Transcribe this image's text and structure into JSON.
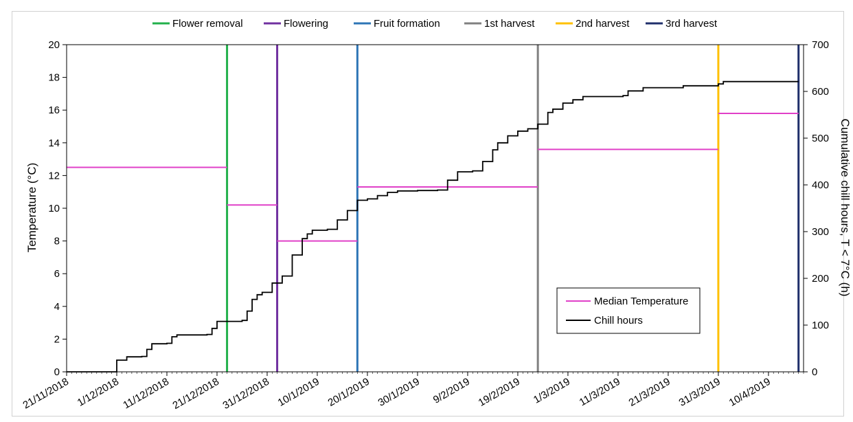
{
  "chart_data": {
    "type": "line",
    "title": "",
    "ylabel": "Temperature (°C)",
    "y2label": "Cumulative chill hours, T < 7°C (h)",
    "ylim": [
      0,
      20
    ],
    "y2lim": [
      0,
      700
    ],
    "yticks": [
      0,
      2,
      4,
      6,
      8,
      10,
      12,
      14,
      16,
      18,
      20
    ],
    "y2ticks": [
      0,
      100,
      200,
      300,
      400,
      500,
      600,
      700
    ],
    "xlim": [
      "2018-11-21",
      "2019-04-17"
    ],
    "xticks": [
      {
        "date": "2018-11-21",
        "label": "21/11/2018"
      },
      {
        "date": "2018-12-01",
        "label": "1/12/2018"
      },
      {
        "date": "2018-12-11",
        "label": "11/12/2018"
      },
      {
        "date": "2018-12-21",
        "label": "21/12/2018"
      },
      {
        "date": "2018-12-31",
        "label": "31/12/2018"
      },
      {
        "date": "2019-01-10",
        "label": "10/1/2019"
      },
      {
        "date": "2019-01-20",
        "label": "20/1/2019"
      },
      {
        "date": "2019-01-30",
        "label": "30/1/2019"
      },
      {
        "date": "2019-02-09",
        "label": "9/2/2019"
      },
      {
        "date": "2019-02-19",
        "label": "19/2/2019"
      },
      {
        "date": "2019-03-01",
        "label": "1/3/2019"
      },
      {
        "date": "2019-03-11",
        "label": "11/3/2019"
      },
      {
        "date": "2019-03-21",
        "label": "21/3/2019"
      },
      {
        "date": "2019-03-31",
        "label": "31/3/2019"
      },
      {
        "date": "2019-04-10",
        "label": "10/4/2019"
      }
    ],
    "events": [
      {
        "name": "Flower removal",
        "date": "2018-12-23",
        "color": "#22b04b"
      },
      {
        "name": "Flowering",
        "date": "2019-01-02",
        "color": "#7030a0"
      },
      {
        "name": "Fruit formation",
        "date": "2019-01-18",
        "color": "#2e75b6"
      },
      {
        "name": "1st harvest",
        "date": "2019-02-23",
        "color": "#808080"
      },
      {
        "name": "2nd harvest",
        "date": "2019-03-31",
        "color": "#ffc000"
      },
      {
        "name": "3rd harvest",
        "date": "2019-04-16",
        "color": "#1f2f6b"
      }
    ],
    "median_temperature": {
      "name": "Median Temperature",
      "color": "#e040c8",
      "segments": [
        {
          "start": "2018-11-21",
          "end": "2018-12-23",
          "value": 12.5
        },
        {
          "start": "2018-12-23",
          "end": "2019-01-02",
          "value": 10.2
        },
        {
          "start": "2019-01-02",
          "end": "2019-01-18",
          "value": 8.0
        },
        {
          "start": "2019-01-18",
          "end": "2019-02-23",
          "value": 11.3
        },
        {
          "start": "2019-02-23",
          "end": "2019-03-31",
          "value": 13.6
        },
        {
          "start": "2019-03-31",
          "end": "2019-04-16",
          "value": 15.8
        }
      ]
    },
    "chill_hours": {
      "name": "Chill hours",
      "color": "#000000",
      "points": [
        [
          "2018-11-21",
          0
        ],
        [
          "2018-11-30",
          0
        ],
        [
          "2018-12-01",
          25
        ],
        [
          "2018-12-02",
          25
        ],
        [
          "2018-12-03",
          32
        ],
        [
          "2018-12-06",
          33
        ],
        [
          "2018-12-07",
          48
        ],
        [
          "2018-12-08",
          60
        ],
        [
          "2018-12-11",
          61
        ],
        [
          "2018-12-12",
          75
        ],
        [
          "2018-12-13",
          79
        ],
        [
          "2018-12-19",
          80
        ],
        [
          "2018-12-20",
          93
        ],
        [
          "2018-12-21",
          108
        ],
        [
          "2018-12-26",
          110
        ],
        [
          "2018-12-27",
          130
        ],
        [
          "2018-12-28",
          155
        ],
        [
          "2018-12-29",
          165
        ],
        [
          "2018-12-30",
          170
        ],
        [
          "2019-01-01",
          190
        ],
        [
          "2019-01-03",
          205
        ],
        [
          "2019-01-05",
          250
        ],
        [
          "2019-01-07",
          285
        ],
        [
          "2019-01-08",
          295
        ],
        [
          "2019-01-09",
          303
        ],
        [
          "2019-01-12",
          305
        ],
        [
          "2019-01-14",
          325
        ],
        [
          "2019-01-16",
          345
        ],
        [
          "2019-01-18",
          367
        ],
        [
          "2019-01-20",
          370
        ],
        [
          "2019-01-22",
          377
        ],
        [
          "2019-01-24",
          384
        ],
        [
          "2019-01-26",
          387
        ],
        [
          "2019-01-30",
          388
        ],
        [
          "2019-02-03",
          389
        ],
        [
          "2019-02-05",
          410
        ],
        [
          "2019-02-07",
          428
        ],
        [
          "2019-02-10",
          430
        ],
        [
          "2019-02-12",
          450
        ],
        [
          "2019-02-14",
          475
        ],
        [
          "2019-02-15",
          490
        ],
        [
          "2019-02-17",
          505
        ],
        [
          "2019-02-19",
          515
        ],
        [
          "2019-02-21",
          520
        ],
        [
          "2019-02-23",
          530
        ],
        [
          "2019-02-25",
          555
        ],
        [
          "2019-02-26",
          562
        ],
        [
          "2019-02-28",
          575
        ],
        [
          "2019-03-02",
          582
        ],
        [
          "2019-03-04",
          589
        ],
        [
          "2019-03-12",
          591
        ],
        [
          "2019-03-13",
          601
        ],
        [
          "2019-03-16",
          608
        ],
        [
          "2019-03-24",
          612
        ],
        [
          "2019-03-31",
          616
        ],
        [
          "2019-04-01",
          621
        ],
        [
          "2019-04-16",
          621
        ]
      ]
    },
    "legend_top": [
      "Flower removal",
      "Flowering",
      "Fruit formation",
      "1st harvest",
      "2nd harvest",
      "3rd harvest"
    ],
    "legend_inner": [
      "Median Temperature",
      "Chill hours"
    ],
    "legend_inner_position": "lower-right",
    "grid": false
  }
}
